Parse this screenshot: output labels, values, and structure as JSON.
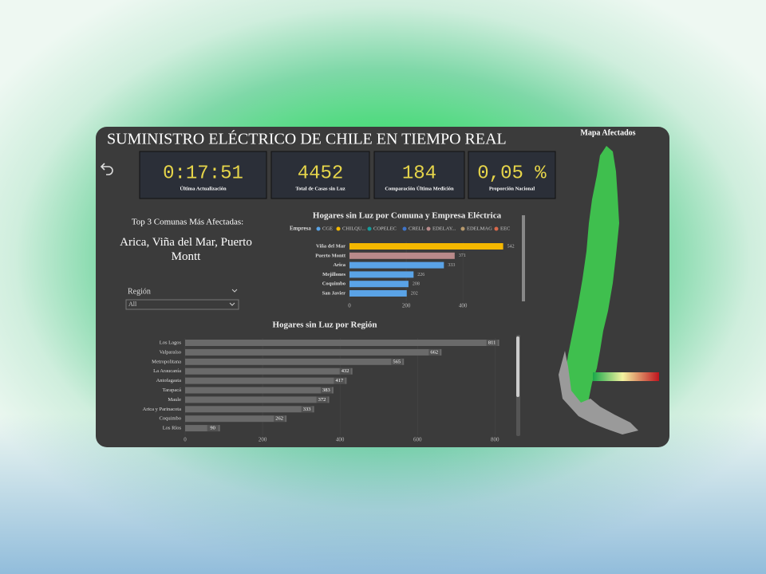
{
  "header": {
    "title": "SUMINISTRO ELÉCTRICO DE CHILE EN TIEMPO REAL",
    "map_title": "Mapa Afectados"
  },
  "kpis": [
    {
      "value": "0:17:51",
      "label": "Última Actualización"
    },
    {
      "value": 4452,
      "label": "Total de Casas sin Luz"
    },
    {
      "value": 184,
      "label": "Comparación Última Medición"
    },
    {
      "value": "0,05 %",
      "label": "Proporción Nacional"
    }
  ],
  "top_comunas": {
    "title": "Top 3 Comunas Más Afectadas:",
    "text": "Arica, Viña del Mar, Puerto Montt"
  },
  "filter": {
    "label": "Región",
    "value": "All"
  },
  "chart_data": [
    {
      "type": "bar",
      "orientation": "horizontal",
      "title": "Hogares sin Luz por Comuna y Empresa Eléctrica",
      "legend_title": "Empresa",
      "categories": [
        "Viña del Mar",
        "Puerto Montt",
        "Arica",
        "Mejillones",
        "Coquimbo",
        "San Javier"
      ],
      "series": [
        {
          "name": "CGE",
          "color": "#5aa3e6",
          "values": [
            null,
            null,
            333,
            226,
            208,
            202
          ]
        },
        {
          "name": "CHILQU...",
          "color": "#f5b800",
          "values": [
            542,
            null,
            null,
            null,
            null,
            null
          ]
        },
        {
          "name": "COPELEC",
          "color": "#169c9c",
          "values": [
            null,
            null,
            null,
            null,
            null,
            null
          ]
        },
        {
          "name": "CRELL",
          "color": "#3f74c9",
          "values": [
            null,
            null,
            null,
            null,
            null,
            null
          ]
        },
        {
          "name": "EDELAY...",
          "color": "#b98a8a",
          "values": [
            null,
            371,
            null,
            null,
            null,
            null
          ]
        },
        {
          "name": "EDELMAG",
          "color": "#b89a6c",
          "values": [
            null,
            null,
            null,
            null,
            null,
            null
          ]
        },
        {
          "name": "EEC",
          "color": "#d9694c",
          "values": [
            null,
            null,
            null,
            null,
            null,
            null
          ]
        }
      ],
      "xlim": [
        0,
        560
      ],
      "xticks": [
        0,
        200,
        400
      ]
    },
    {
      "type": "bar",
      "orientation": "horizontal",
      "title": "Hogares sin Luz por Región",
      "categories": [
        "Los Lagos",
        "Valparaíso",
        "Metropolitana",
        "La Araucanía",
        "Antofagasta",
        "Tarapacá",
        "Maule",
        "Arica y Parinacota",
        "Coquimbo",
        "Los Ríos"
      ],
      "values": [
        811,
        662,
        565,
        432,
        417,
        383,
        372,
        333,
        262,
        90
      ],
      "color": "#6a6a6a",
      "xlim": [
        0,
        820
      ],
      "xticks": [
        0,
        200,
        400,
        600,
        800
      ]
    }
  ]
}
